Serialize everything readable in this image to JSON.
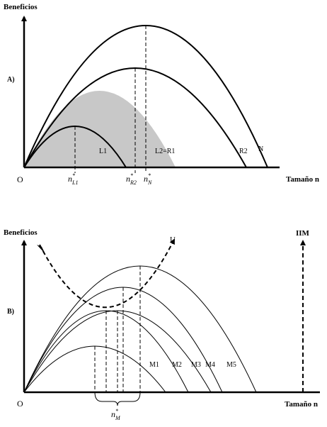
{
  "panel_a": {
    "tag": "A)",
    "y_axis_label": "Beneficios",
    "x_axis_label": "Tamaño n",
    "origin_label": "O",
    "curves": {
      "l1": "L1",
      "l2r1": "L2=R1",
      "r2": "R2",
      "n": "N"
    },
    "optima": {
      "l1": {
        "base": "n",
        "sup": "*",
        "sub": "L1"
      },
      "r2": {
        "base": "n",
        "sup": "*",
        "sub": "R2"
      },
      "n": {
        "base": "n",
        "sup": "*",
        "sub": "N"
      }
    }
  },
  "panel_b": {
    "tag": "B)",
    "y_axis_label": "Beneficios",
    "x_axis_label": "Tamaño n",
    "origin_label": "O",
    "curve_u": "U",
    "curve_iim": "IIM",
    "curves": [
      "M1",
      "M2",
      "M3",
      "M4",
      "M5"
    ],
    "optimum": {
      "base": "n",
      "sup": "*",
      "sub": "M"
    }
  },
  "colors": {
    "ink": "#000000",
    "shade": "#c8c8c8"
  }
}
